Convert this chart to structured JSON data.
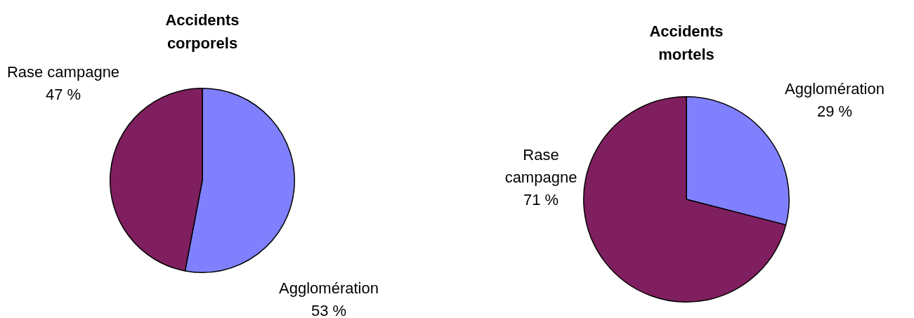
{
  "chart_data": [
    {
      "type": "pie",
      "title": "Accidents corporels",
      "categories": [
        "Agglomération",
        "Rase campagne"
      ],
      "values": [
        53,
        47
      ],
      "colors": [
        "#8080ff",
        "#801f5f"
      ],
      "value_labels": [
        "53 %",
        "47 %"
      ],
      "legend": false
    },
    {
      "type": "pie",
      "title": "Accidents mortels",
      "categories": [
        "Agglomération",
        "Rase campagne"
      ],
      "values": [
        29,
        71
      ],
      "colors": [
        "#8080ff",
        "#801f5f"
      ],
      "value_labels": [
        "29 %",
        "71 %"
      ],
      "legend": false
    }
  ]
}
